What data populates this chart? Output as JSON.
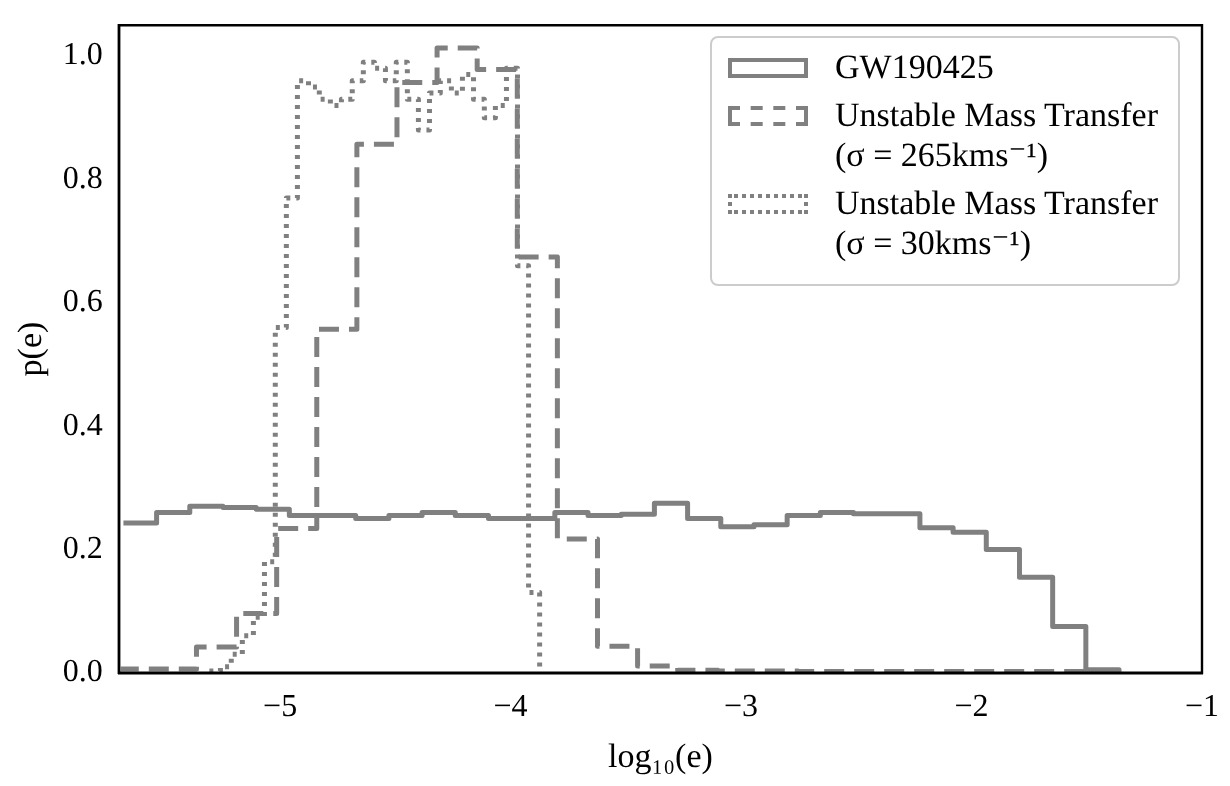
{
  "chart_data": {
    "type": "step",
    "xlabel": "log₁₀(e)",
    "ylabel": "p(e)",
    "xlim": [
      -5.7,
      -1
    ],
    "ylim": [
      0,
      1.05
    ],
    "xticks": [
      {
        "value": -5,
        "label": "−5"
      },
      {
        "value": -4,
        "label": "−4"
      },
      {
        "value": -3,
        "label": "−3"
      },
      {
        "value": -2,
        "label": "−2"
      },
      {
        "value": -1,
        "label": "−1"
      }
    ],
    "yticks": [
      {
        "value": 0,
        "label": "0.0"
      },
      {
        "value": 0.2,
        "label": "0.2"
      },
      {
        "value": 0.4,
        "label": "0.4"
      },
      {
        "value": 0.6,
        "label": "0.6"
      },
      {
        "value": 0.8,
        "label": "0.8"
      },
      {
        "value": 1.0,
        "label": "1.0"
      }
    ],
    "grid": false,
    "legend": "top right",
    "series": [
      {
        "name": "GW190425",
        "color": "#808080",
        "line_style": "solid",
        "x": [
          -5.68,
          -5.536,
          -5.392,
          -5.248,
          -5.104,
          -4.96,
          -4.816,
          -4.672,
          -4.528,
          -4.384,
          -4.24,
          -4.096,
          -3.952,
          -3.808,
          -3.664,
          -3.52,
          -3.376,
          -3.232,
          -3.088,
          -2.944,
          -2.8,
          -2.656,
          -2.512,
          -2.368,
          -2.224,
          -2.08,
          -1.936,
          -1.792,
          -1.648,
          -1.504,
          -1.36
        ],
        "values": [
          0.243,
          0.26,
          0.27,
          0.268,
          0.265,
          0.255,
          0.255,
          0.25,
          0.255,
          0.26,
          0.255,
          0.25,
          0.25,
          0.26,
          0.255,
          0.257,
          0.275,
          0.25,
          0.237,
          0.24,
          0.255,
          0.26,
          0.258,
          0.258,
          0.235,
          0.228,
          0.2,
          0.155,
          0.075,
          0.005,
          0
        ]
      },
      {
        "name": "Unstable Mass Transfer\n(σ = 265kms⁻¹)",
        "color": "#808080",
        "line_style": "dashed",
        "x": [
          -5.7,
          -5.537,
          -5.363,
          -5.189,
          -5.015,
          -4.841,
          -4.667,
          -4.493,
          -4.319,
          -4.145,
          -3.971,
          -3.797,
          -3.623,
          -3.449,
          -3.275,
          -3.101,
          -2.927,
          -2.753,
          -2.579,
          -2.405,
          -2.231,
          -2.057,
          -1.883,
          -1.709,
          -1.535,
          -1.361
        ],
        "values": [
          0.006,
          0.006,
          0.042,
          0.096,
          0.234,
          0.557,
          0.857,
          0.957,
          1.013,
          0.978,
          0.674,
          0.217,
          0.043,
          0.011,
          0.004,
          0.003,
          0.003,
          0.002,
          0.002,
          0.002,
          0.002,
          0.002,
          0.002,
          0.002,
          0.002,
          0
        ]
      },
      {
        "name": "Unstable Mass Transfer\n(σ = 30kms⁻¹)",
        "color": "#808080",
        "line_style": "dotted",
        "x": [
          -5.307,
          -5.259,
          -5.212,
          -5.164,
          -5.116,
          -5.068,
          -5.021,
          -4.973,
          -4.925,
          -4.877,
          -4.83,
          -4.782,
          -4.734,
          -4.687,
          -4.639,
          -4.591,
          -4.543,
          -4.496,
          -4.448,
          -4.4,
          -4.352,
          -4.305,
          -4.257,
          -4.209,
          -4.161,
          -4.114,
          -4.066,
          -4.018,
          -3.97,
          -3.922,
          -3.874
        ],
        "values": [
          0.003,
          0.01,
          0.03,
          0.06,
          0.09,
          0.18,
          0.56,
          0.77,
          0.96,
          0.95,
          0.93,
          0.92,
          0.93,
          0.96,
          0.99,
          0.98,
          0.96,
          0.99,
          0.93,
          0.88,
          0.94,
          0.96,
          0.94,
          0.97,
          0.93,
          0.9,
          0.92,
          0.98,
          0.66,
          0.13,
          0
        ]
      }
    ]
  }
}
